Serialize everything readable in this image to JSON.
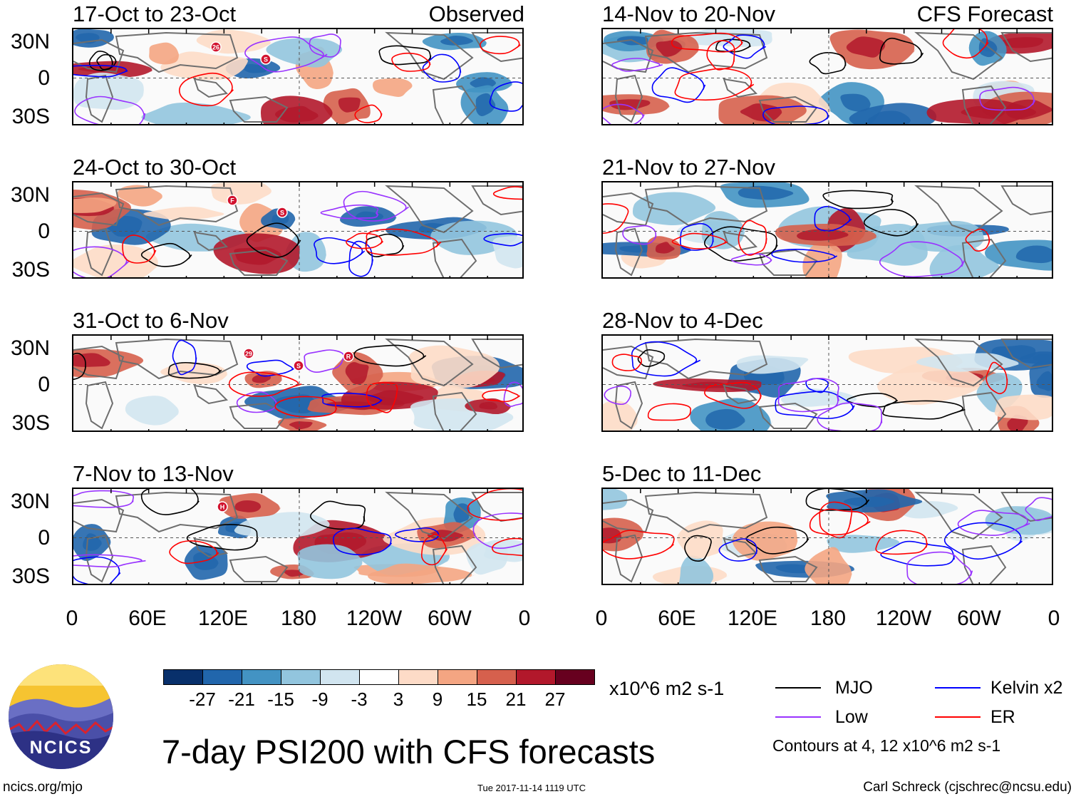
{
  "left_header": "Observed",
  "right_header": "CFS Forecast",
  "panels_left": [
    {
      "title": "17-Oct to 23-Oct",
      "storms": [
        "26",
        "S"
      ]
    },
    {
      "title": "24-Oct to 30-Oct",
      "storms": [
        "F",
        "S"
      ]
    },
    {
      "title": "31-Oct to 6-Nov",
      "storms": [
        "29",
        "S",
        "R"
      ]
    },
    {
      "title": "7-Nov to 13-Nov",
      "storms": [
        "H"
      ]
    }
  ],
  "panels_right": [
    {
      "title": "14-Nov to 20-Nov"
    },
    {
      "title": "21-Nov to 27-Nov"
    },
    {
      "title": "28-Nov to 4-Dec"
    },
    {
      "title": "5-Dec to 11-Dec"
    }
  ],
  "lat_labels": [
    "30N",
    "0",
    "30S"
  ],
  "lon_labels": [
    "0",
    "60E",
    "120E",
    "180",
    "120W",
    "60W",
    "0"
  ],
  "colorbar": {
    "colors": [
      "#08306b",
      "#2166ac",
      "#4393c3",
      "#92c5de",
      "#d1e5f0",
      "#ffffff",
      "#fddbc7",
      "#f4a582",
      "#d6604d",
      "#b2182b",
      "#67001f"
    ],
    "ticks": [
      "-27",
      "-21",
      "-15",
      "-9",
      "-3",
      "3",
      "9",
      "15",
      "21",
      "27"
    ],
    "units": "x10^6 m2 s-1"
  },
  "legend": [
    {
      "label": "MJO",
      "color": "#000000"
    },
    {
      "label": "Kelvin x2",
      "color": "#0000ff"
    },
    {
      "label": "Low",
      "color": "#9933ff"
    },
    {
      "label": "ER",
      "color": "#ff0000"
    }
  ],
  "contours_note": "Contours at 4, 12 x10^6 m2 s-1",
  "title": "7-day PSI200 with CFS forecasts",
  "logo_text": "NCICS",
  "url": "ncics.org/mjo",
  "timestamp": "Tue 2017-11-14 1119 UTC",
  "credit": "Carl Schreck (cjschrec@ncsu.edu)"
}
